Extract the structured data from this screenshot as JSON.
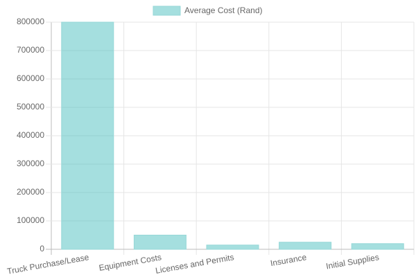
{
  "chart_data": {
    "type": "bar",
    "legend": "Average Cost (Rand)",
    "categories": [
      "Truck Purchase/Lease",
      "Equipment Costs",
      "Licenses and Permits",
      "Insurance",
      "Initial Supplies"
    ],
    "values": [
      800000,
      50000,
      15000,
      25000,
      20000
    ],
    "color": "rgba(75, 192, 192, 0.5)",
    "border_color": "rgb(150, 215, 215)",
    "ylim": [
      0,
      800000
    ],
    "yticks": [
      0,
      100000,
      200000,
      300000,
      400000,
      500000,
      600000,
      700000,
      800000
    ],
    "grid": true
  }
}
